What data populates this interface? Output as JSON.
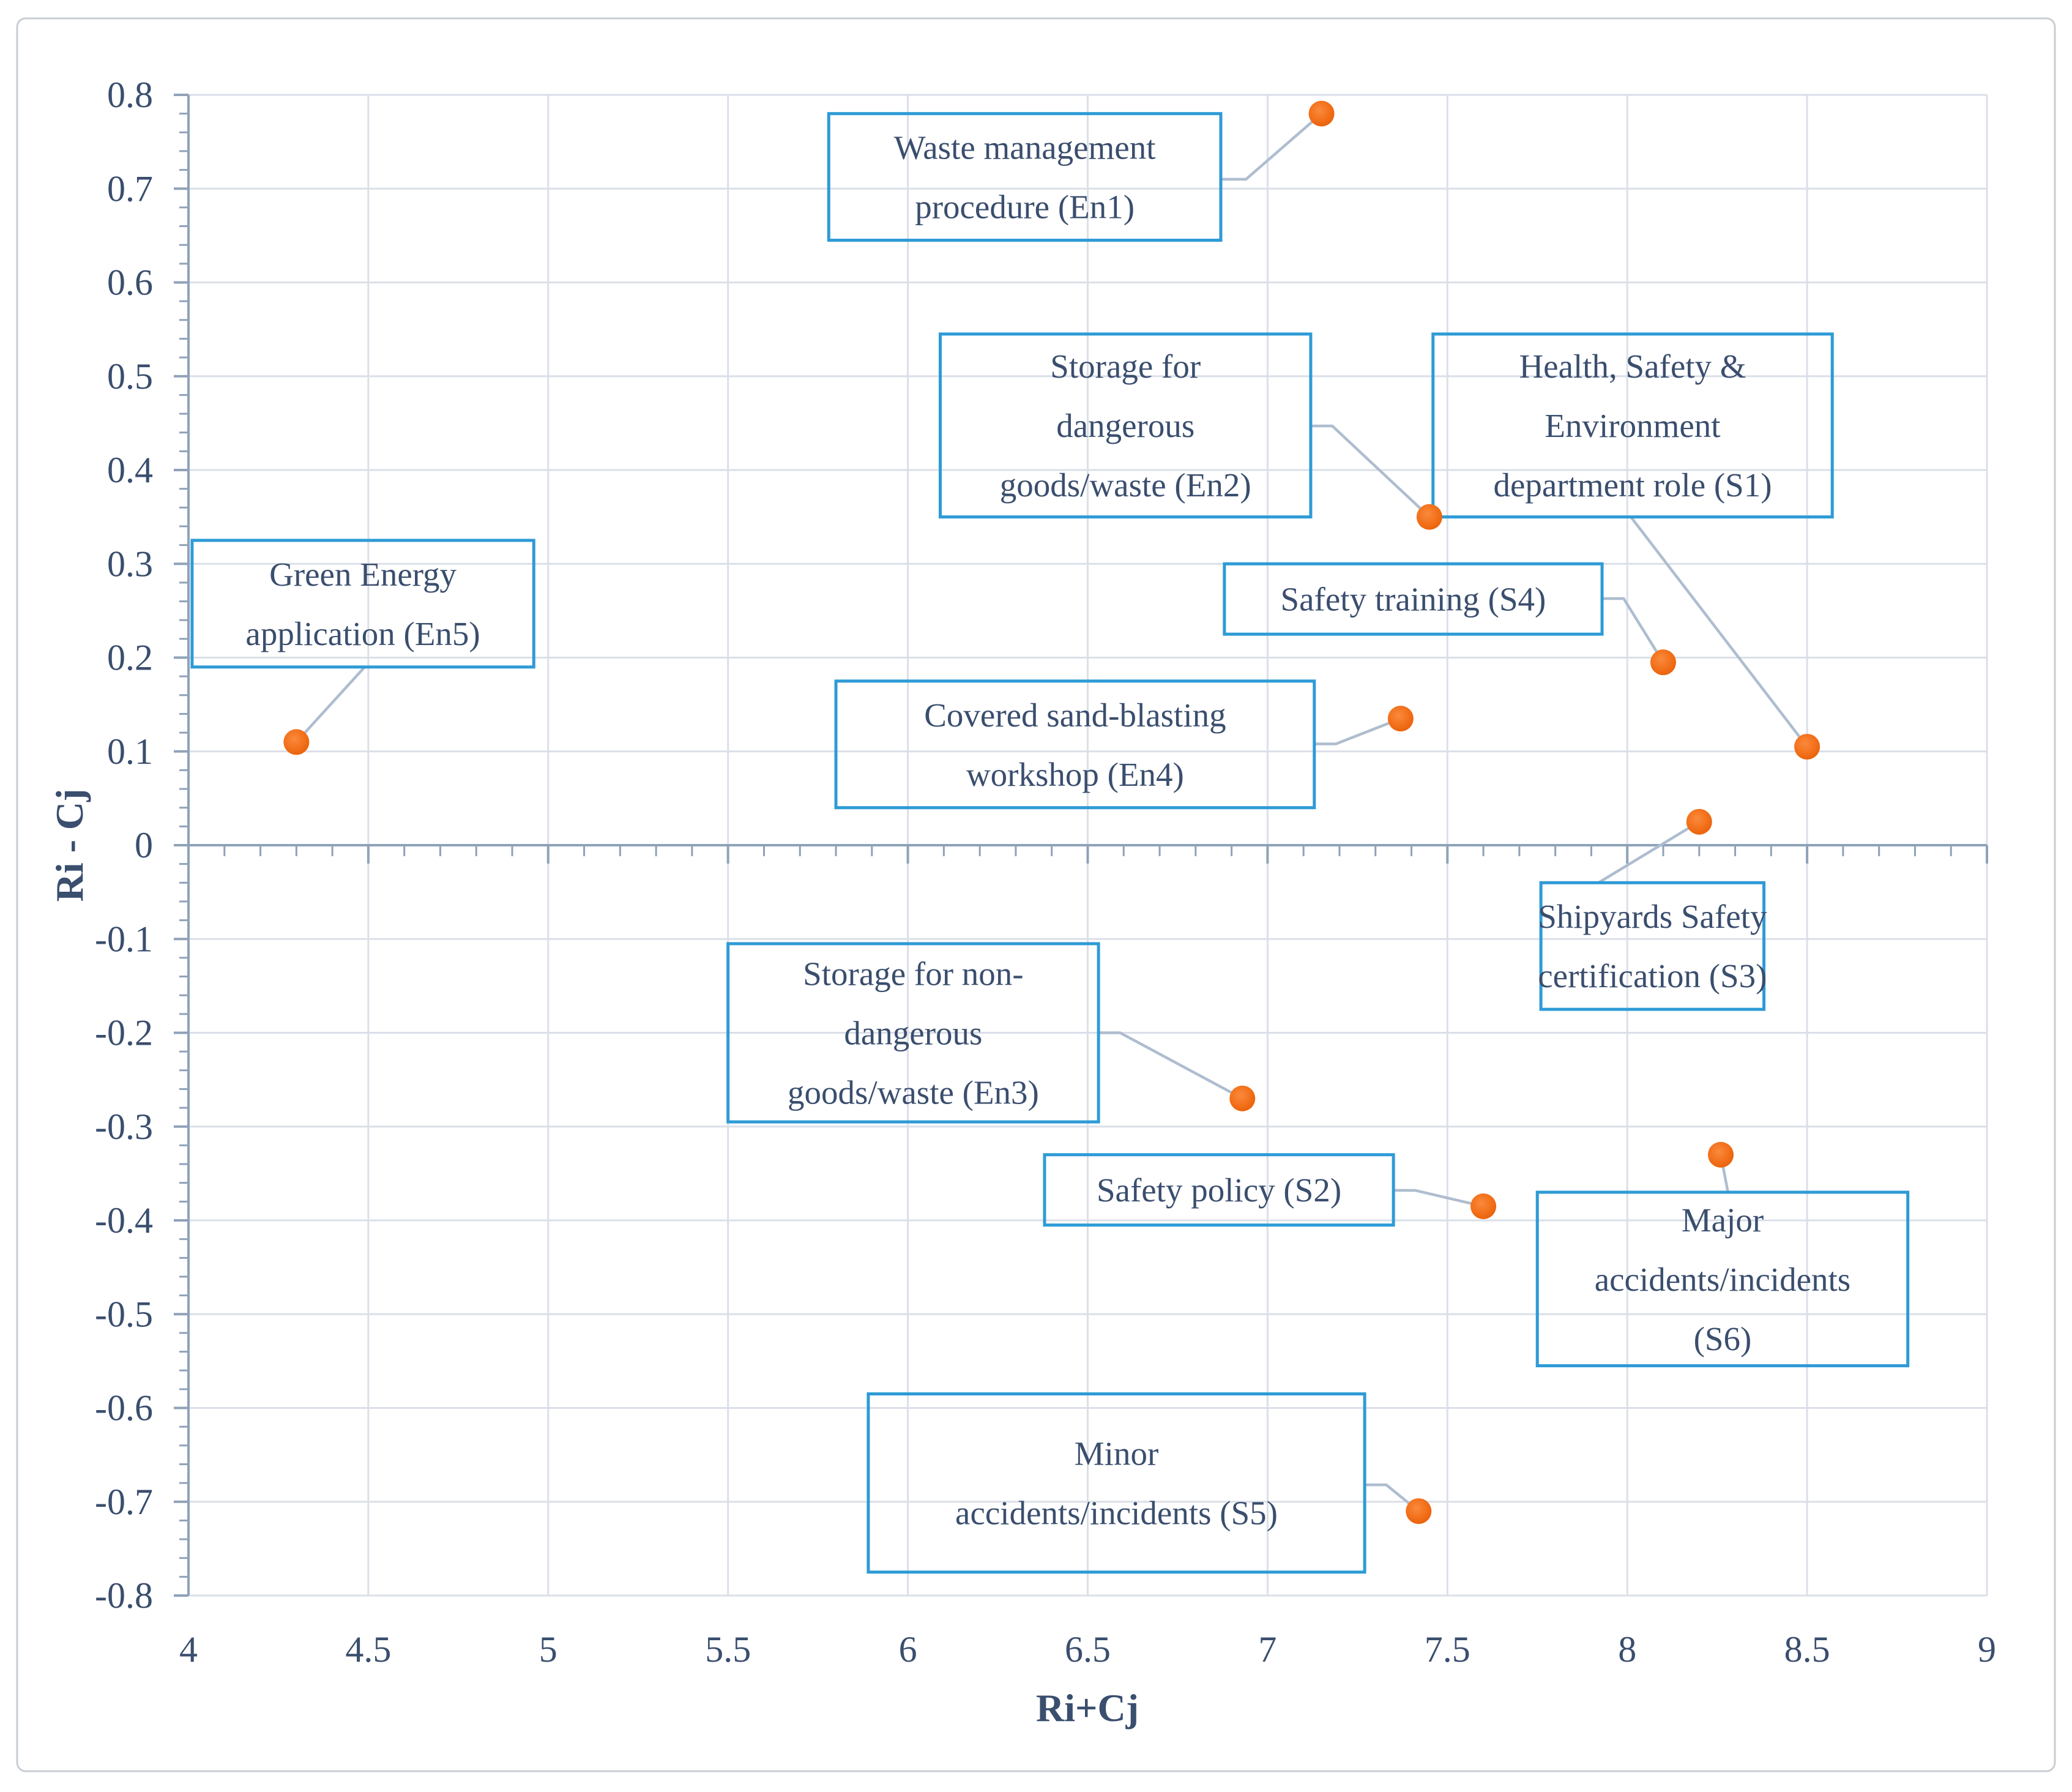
{
  "figure": {
    "x_axis_title": "Ri+Cj",
    "y_axis_title": "Ri - Cj"
  },
  "chart_data": {
    "type": "scatter",
    "title": "",
    "xlabel": "Ri+Cj",
    "ylabel": "Ri - Cj",
    "xlim": [
      4,
      9
    ],
    "ylim": [
      -0.8,
      0.8
    ],
    "grid": true,
    "legend_position": "none",
    "x_ticks": [
      "4",
      "4.5",
      "5",
      "5.5",
      "6",
      "6.5",
      "7",
      "7.5",
      "8",
      "8.5",
      "9"
    ],
    "y_ticks": [
      "0.8",
      "0.7",
      "0.6",
      "0.5",
      "0.4",
      "0.3",
      "0.2",
      "0.1",
      "0",
      "-0.1",
      "-0.2",
      "-0.3",
      "-0.4",
      "-0.5",
      "-0.6",
      "-0.7",
      "-0.8"
    ],
    "x_minor_tick_step": 0.1,
    "y_minor_tick_step": 0.02,
    "colors": {
      "marker": "#F4731E",
      "marker_edge": "#E9610A",
      "marker_highlight": "#F98A3C",
      "box_border": "#2E9BD6",
      "leader_line": "#AEBDCF",
      "gridline": "#DBDFE8",
      "axis_line": "#8FA2B8",
      "text": "#3A4E6E",
      "outer_frame": "#C9CED4",
      "background": "#FFFFFF"
    },
    "series": [
      {
        "id": "En1",
        "name": "Waste management procedure (En1)",
        "x": 7.15,
        "y": 0.78,
        "label_lines": [
          "Waste management",
          "procedure (En1)"
        ],
        "box": {
          "x1": 5.78,
          "y_top": 0.78,
          "x2": 6.87,
          "y_bottom": 0.645
        },
        "leader": [
          [
            6.87,
            0.71
          ],
          [
            6.94,
            0.71
          ],
          [
            7.15,
            0.78
          ]
        ]
      },
      {
        "id": "En2",
        "name": "Storage for dangerous goods/waste (En2)",
        "x": 7.45,
        "y": 0.35,
        "label_lines": [
          "Storage for",
          "dangerous",
          "goods/waste (En2)"
        ],
        "box": {
          "x1": 6.09,
          "y_top": 0.545,
          "x2": 7.12,
          "y_bottom": 0.35
        },
        "leader": [
          [
            7.12,
            0.447
          ],
          [
            7.18,
            0.447
          ],
          [
            7.45,
            0.35
          ]
        ]
      },
      {
        "id": "S1",
        "name": "Health, Safety & Environment department role (S1)",
        "x": 8.5,
        "y": 0.105,
        "label_lines": [
          "Health, Safety &",
          "Environment",
          "department role (S1)"
        ],
        "box": {
          "x1": 7.46,
          "y_top": 0.545,
          "x2": 8.57,
          "y_bottom": 0.35
        },
        "leader": [
          [
            8.01,
            0.35
          ],
          [
            8.5,
            0.105
          ]
        ]
      },
      {
        "id": "S4",
        "name": "Safety training (S4)",
        "x": 8.1,
        "y": 0.195,
        "label_lines": [
          "Safety training (S4)"
        ],
        "box": {
          "x1": 6.88,
          "y_top": 0.3,
          "x2": 7.93,
          "y_bottom": 0.225
        },
        "leader": [
          [
            7.93,
            0.263
          ],
          [
            7.99,
            0.263
          ],
          [
            8.1,
            0.195
          ]
        ]
      },
      {
        "id": "En5",
        "name": "Green Energy application (En5)",
        "x": 4.3,
        "y": 0.11,
        "label_lines": [
          "Green Energy",
          "application (En5)"
        ],
        "box": {
          "x1": 4.01,
          "y_top": 0.325,
          "x2": 4.96,
          "y_bottom": 0.19
        },
        "leader": [
          [
            4.49,
            0.19
          ],
          [
            4.3,
            0.11
          ]
        ]
      },
      {
        "id": "En4",
        "name": "Covered sand-blasting workshop (En4)",
        "x": 7.37,
        "y": 0.135,
        "label_lines": [
          "Covered sand-blasting",
          "workshop (En4)"
        ],
        "box": {
          "x1": 5.8,
          "y_top": 0.175,
          "x2": 7.13,
          "y_bottom": 0.04
        },
        "leader": [
          [
            7.13,
            0.108
          ],
          [
            7.19,
            0.108
          ],
          [
            7.37,
            0.135
          ]
        ]
      },
      {
        "id": "S3",
        "name": "Shipyards Safety certification (S3)",
        "x": 8.2,
        "y": 0.025,
        "label_lines": [
          "Shipyards Safety",
          "certification (S3)"
        ],
        "box": {
          "x1": 7.76,
          "y_top": -0.04,
          "x2": 8.38,
          "y_bottom": -0.175
        },
        "leader": [
          [
            7.92,
            -0.04
          ],
          [
            8.2,
            0.025
          ]
        ]
      },
      {
        "id": "En3",
        "name": "Storage for non-dangerous goods/waste (En3)",
        "x": 6.93,
        "y": -0.27,
        "label_lines": [
          "Storage for non-",
          "dangerous",
          "goods/waste (En3)"
        ],
        "box": {
          "x1": 5.5,
          "y_top": -0.105,
          "x2": 6.53,
          "y_bottom": -0.295
        },
        "leader": [
          [
            6.53,
            -0.2
          ],
          [
            6.59,
            -0.2
          ],
          [
            6.93,
            -0.27
          ]
        ]
      },
      {
        "id": "S2",
        "name": "Safety policy (S2)",
        "x": 7.6,
        "y": -0.385,
        "label_lines": [
          "Safety policy (S2)"
        ],
        "box": {
          "x1": 6.38,
          "y_top": -0.33,
          "x2": 7.35,
          "y_bottom": -0.405
        },
        "leader": [
          [
            7.35,
            -0.368
          ],
          [
            7.41,
            -0.368
          ],
          [
            7.6,
            -0.385
          ]
        ]
      },
      {
        "id": "S6",
        "name": "Major accidents/incidents (S6)",
        "x": 8.26,
        "y": -0.33,
        "label_lines": [
          "Major",
          "accidents/incidents",
          "(S6)"
        ],
        "box": {
          "x1": 7.75,
          "y_top": -0.37,
          "x2": 8.78,
          "y_bottom": -0.555
        },
        "leader": [
          [
            8.28,
            -0.37
          ],
          [
            8.26,
            -0.33
          ]
        ]
      },
      {
        "id": "S5",
        "name": "Minor accidents/incidents (S5)",
        "x": 7.42,
        "y": -0.71,
        "label_lines": [
          "Minor",
          "accidents/incidents (S5)"
        ],
        "box": {
          "x1": 5.89,
          "y_top": -0.585,
          "x2": 7.27,
          "y_bottom": -0.775
        },
        "leader": [
          [
            7.27,
            -0.682
          ],
          [
            7.33,
            -0.682
          ],
          [
            7.42,
            -0.71
          ]
        ]
      }
    ]
  }
}
